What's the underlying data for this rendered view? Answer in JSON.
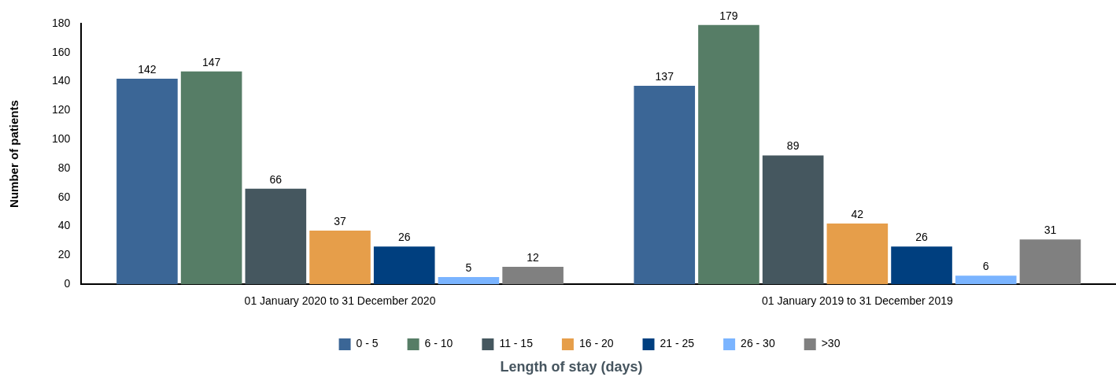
{
  "chart_data": {
    "type": "bar",
    "ylabel": "Number of patients",
    "legend_title": "Length of stay (days)",
    "categories": [
      "01 January 2020 to 31 December 2020",
      "01 January 2019 to 31 December 2019"
    ],
    "series": [
      {
        "name": "0 - 5",
        "color": "#3b6696",
        "values": [
          142,
          137
        ]
      },
      {
        "name": "6 - 10",
        "color": "#567d66",
        "values": [
          147,
          179
        ]
      },
      {
        "name": "11 - 15",
        "color": "#45575f",
        "values": [
          66,
          89
        ]
      },
      {
        "name": "16 - 20",
        "color": "#e69e4a",
        "values": [
          37,
          42
        ]
      },
      {
        "name": "21 - 25",
        "color": "#003f7f",
        "values": [
          26,
          26
        ]
      },
      {
        "name": "26 - 30",
        "color": "#7ab4ff",
        "values": [
          5,
          6
        ]
      },
      {
        "name": ">30",
        "color": "#808080",
        "values": [
          12,
          31
        ]
      }
    ],
    "ylim": [
      0,
      180
    ],
    "yticks": [
      0,
      20,
      40,
      60,
      80,
      100,
      120,
      140,
      160,
      180
    ],
    "data_labels": true,
    "legend": "bottom"
  }
}
